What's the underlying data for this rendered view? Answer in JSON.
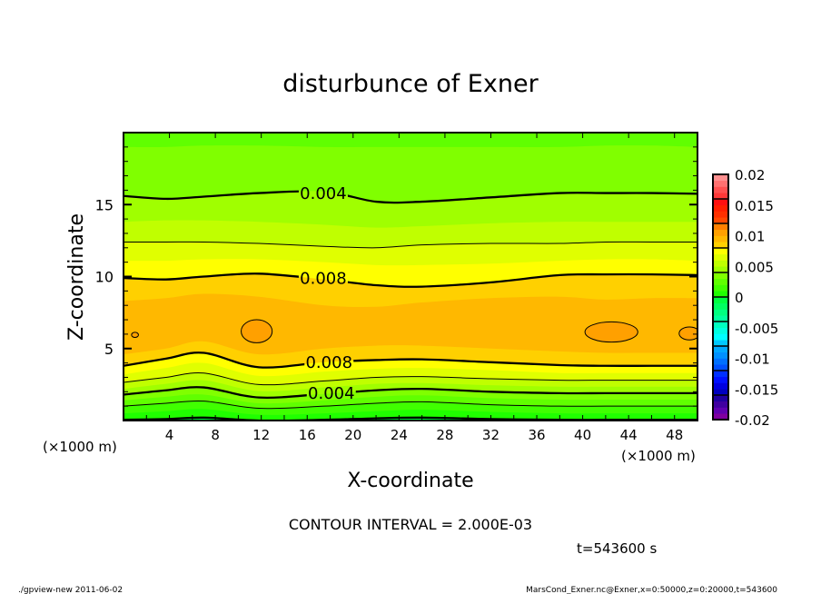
{
  "chart_data": {
    "type": "heatmap",
    "subtype": "filled-contour",
    "title": "disturbunce of Exner",
    "xlabel": "X-coordinate",
    "ylabel": "Z-coordinate",
    "x_unit_left": "(×1000 m)",
    "x_unit_right": "(×1000 m)",
    "xlim": [
      0,
      50
    ],
    "ylim": [
      0,
      20
    ],
    "xtick_labels": [
      "4",
      "8",
      "12",
      "16",
      "20",
      "24",
      "28",
      "32",
      "36",
      "40",
      "44",
      "48"
    ],
    "xtick_values": [
      4,
      8,
      12,
      16,
      20,
      24,
      28,
      32,
      36,
      40,
      44,
      48
    ],
    "ytick_labels": [
      "5",
      "10",
      "15"
    ],
    "ytick_values": [
      5,
      10,
      15
    ],
    "contour_interval_text": "CONTOUR INTERVAL = 2.000E-03",
    "time_text": "t=543600 s",
    "colorbar": {
      "min": -0.02,
      "max": 0.02,
      "step": 0.001,
      "labels": [
        "0.02",
        "0.015",
        "0.01",
        "0.005",
        "0",
        "-0.005",
        "-0.01",
        "-0.015",
        "-0.02"
      ],
      "colors_bottom_to_top": [
        "#8000a0",
        "#6000b0",
        "#4000a0",
        "#2000a0",
        "#0000c0",
        "#0000e0",
        "#0010ff",
        "#0030ff",
        "#0050ff",
        "#0070ff",
        "#0090ff",
        "#00a8ff",
        "#00c8ff",
        "#00ffff",
        "#00ffe0",
        "#00ffc0",
        "#00ffa0",
        "#00ff80",
        "#00ff60",
        "#00ff40",
        "#20ff00",
        "#40ff00",
        "#60ff00",
        "#80ff00",
        "#a0ff00",
        "#c0ff00",
        "#e0ff00",
        "#ffff00",
        "#ffd000",
        "#ffb800",
        "#ffa000",
        "#ff8000",
        "#ff4800",
        "#ff3000",
        "#ff2000",
        "#ff1010",
        "#ff3838",
        "#ff5050",
        "#ff7070",
        "#ff9090"
      ]
    },
    "x_samples": [
      0,
      3.7,
      7,
      11.8,
      17.5,
      22,
      26,
      32,
      38,
      42,
      46,
      50
    ],
    "contours_lower": [
      {
        "level": 0.009,
        "style": "none",
        "z": [
          4.6,
          5.0,
          5.5,
          4.6,
          5.0,
          5.2,
          5.2,
          5.0,
          4.8,
          4.7,
          4.7,
          4.7
        ]
      },
      {
        "level": 0.008,
        "style": "thick",
        "z": [
          3.8,
          4.3,
          4.7,
          3.7,
          4.05,
          4.2,
          4.25,
          4.05,
          3.85,
          3.8,
          3.8,
          3.8
        ]
      },
      {
        "level": 0.007,
        "style": "none",
        "z": [
          3.2,
          3.65,
          4.0,
          3.1,
          3.4,
          3.6,
          3.65,
          3.5,
          3.3,
          3.3,
          3.3,
          3.3
        ]
      },
      {
        "level": 0.006,
        "style": "thin",
        "z": [
          2.65,
          3.0,
          3.3,
          2.5,
          2.75,
          3.0,
          3.05,
          2.9,
          2.8,
          2.8,
          2.8,
          2.8
        ]
      },
      {
        "level": 0.005,
        "style": "none",
        "z": [
          2.2,
          2.55,
          2.8,
          2.05,
          2.3,
          2.55,
          2.6,
          2.45,
          2.35,
          2.35,
          2.35,
          2.35
        ]
      },
      {
        "level": 0.004,
        "style": "thick",
        "z": [
          1.8,
          2.1,
          2.3,
          1.6,
          1.85,
          2.1,
          2.2,
          2.0,
          1.9,
          1.9,
          1.9,
          1.9
        ]
      },
      {
        "level": 0.003,
        "style": "none",
        "z": [
          1.4,
          1.65,
          1.8,
          1.2,
          1.4,
          1.65,
          1.75,
          1.55,
          1.45,
          1.45,
          1.45,
          1.45
        ]
      },
      {
        "level": 0.002,
        "style": "thin",
        "z": [
          1.0,
          1.2,
          1.35,
          0.85,
          1.0,
          1.2,
          1.3,
          1.1,
          1.0,
          1.0,
          1.0,
          1.0
        ]
      },
      {
        "level": 0.001,
        "style": "none",
        "z": [
          0.5,
          0.65,
          0.8,
          0.4,
          0.5,
          0.65,
          0.75,
          0.6,
          0.5,
          0.5,
          0.5,
          0.5
        ]
      },
      {
        "level": 0.0,
        "style": "thick",
        "z": [
          0.05,
          0.1,
          0.2,
          0.0,
          0.05,
          0.15,
          0.2,
          0.1,
          0.05,
          0.05,
          0.05,
          0.05
        ]
      }
    ],
    "contours_upper": [
      {
        "level": 0.009,
        "style": "none",
        "z": [
          8.3,
          8.5,
          8.8,
          8.6,
          8.0,
          7.9,
          8.2,
          8.5,
          8.6,
          8.4,
          8.5,
          8.5
        ]
      },
      {
        "level": 0.008,
        "style": "thick",
        "z": [
          9.9,
          9.8,
          10.0,
          10.2,
          9.8,
          9.4,
          9.3,
          9.6,
          10.1,
          10.15,
          10.15,
          10.1
        ]
      },
      {
        "level": 0.007,
        "style": "none",
        "z": [
          11.1,
          11.1,
          11.2,
          11.2,
          11.0,
          10.8,
          10.8,
          10.9,
          11.1,
          11.2,
          11.2,
          11.1
        ]
      },
      {
        "level": 0.006,
        "style": "thin",
        "z": [
          12.4,
          12.4,
          12.4,
          12.3,
          12.1,
          12.0,
          12.2,
          12.3,
          12.3,
          12.4,
          12.4,
          12.4
        ]
      },
      {
        "level": 0.005,
        "style": "none",
        "z": [
          13.8,
          13.9,
          13.9,
          13.8,
          13.6,
          13.4,
          13.5,
          13.7,
          13.8,
          13.8,
          13.8,
          13.8
        ]
      },
      {
        "level": 0.004,
        "style": "thick",
        "z": [
          15.6,
          15.4,
          15.55,
          15.8,
          15.9,
          15.2,
          15.2,
          15.5,
          15.8,
          15.8,
          15.8,
          15.75
        ]
      },
      {
        "level": 0.003,
        "style": "none",
        "z": [
          19.0,
          19.0,
          19.1,
          19.1,
          19.0,
          19.0,
          19.0,
          19.0,
          19.0,
          19.1,
          19.1,
          19.0
        ]
      }
    ],
    "closed_contours": [
      {
        "level": 0.01,
        "x": 11.6,
        "z": 6.2,
        "rx": 1.35,
        "rz": 0.8
      },
      {
        "level": 0.01,
        "x": 42.5,
        "z": 6.15,
        "rx": 2.3,
        "rz": 0.7
      },
      {
        "level": 0.01,
        "x": 49.3,
        "z": 6.05,
        "rx": 0.9,
        "rz": 0.45
      },
      {
        "level": 0.01,
        "x": 1.0,
        "z": 5.95,
        "rx": 0.3,
        "rz": 0.18
      }
    ],
    "contour_labels": [
      {
        "text": "0.004",
        "x": 17.4,
        "z": 15.85
      },
      {
        "text": "0.008",
        "x": 17.4,
        "z": 9.95
      },
      {
        "text": "0.008",
        "x": 17.9,
        "z": 4.1
      },
      {
        "text": "0.004",
        "x": 18.1,
        "z": 1.95
      }
    ]
  },
  "footer": {
    "left": "./gpview-new  2011-06-02",
    "right": "MarsCond_Exner.nc@Exner,x=0:50000,z=0:20000,t=543600"
  }
}
